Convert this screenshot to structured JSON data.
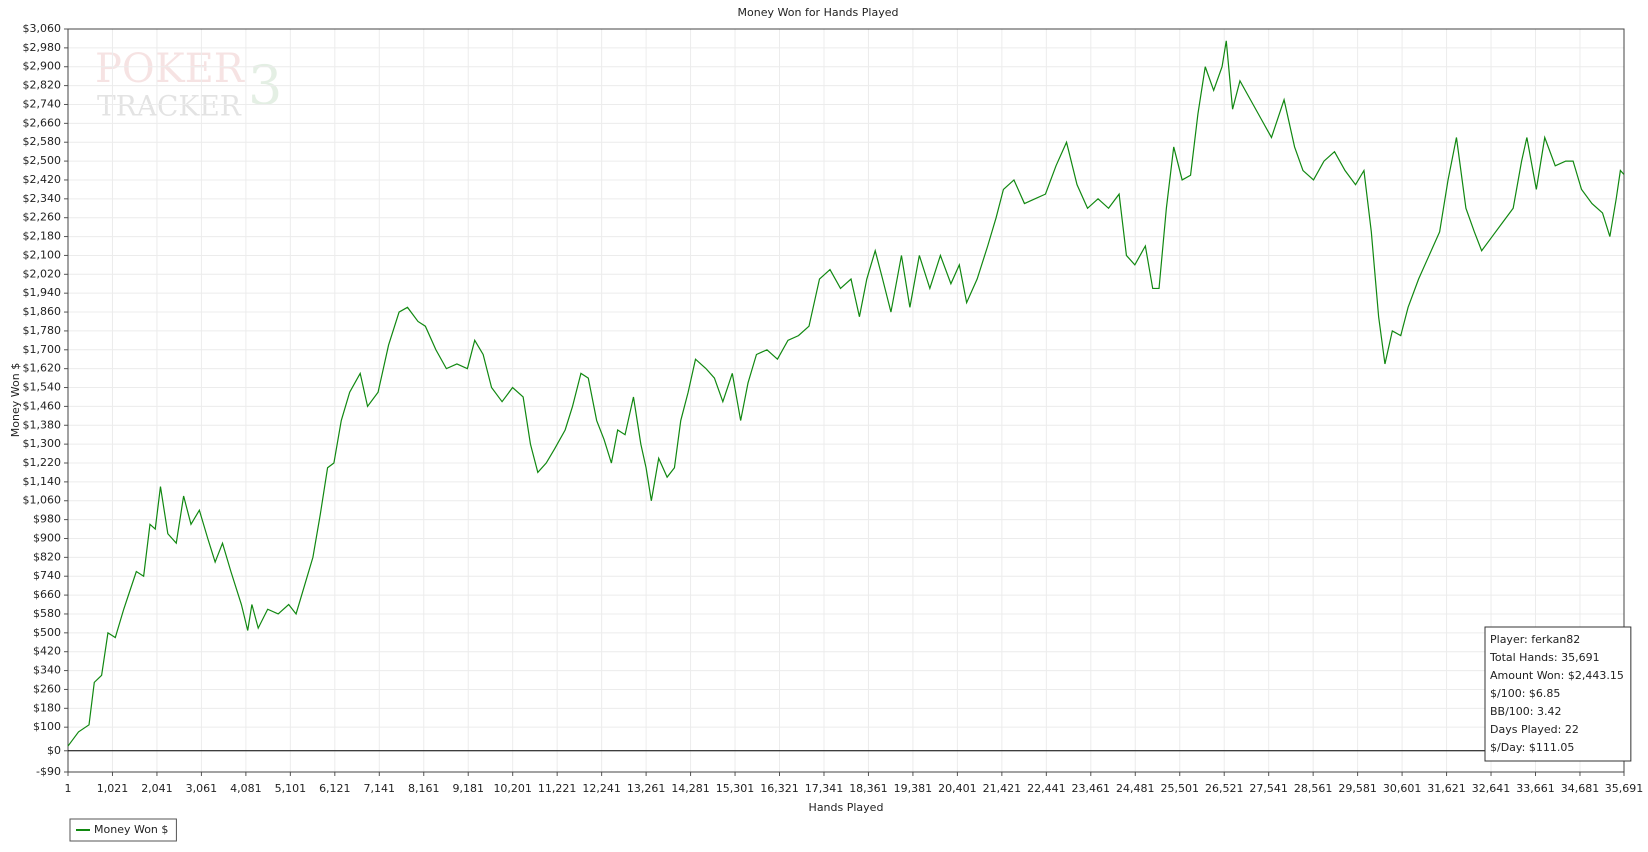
{
  "chart_data": {
    "type": "line",
    "title": "Money Won for Hands Played",
    "x_label": "Hands Played",
    "y_label": "Money Won $",
    "watermark": [
      "POKER",
      "TRACKER",
      "3"
    ],
    "annotations": [
      "Player: ferkan82",
      "Total Hands: 35,691",
      "Amount Won: $2,443.15",
      "$/100: $6.85",
      "BB/100: 3.42",
      "Days Played: 22",
      "$/Day: $111.05"
    ],
    "grid": true,
    "legend": "bottom-left",
    "x": [
      1,
      242,
      483,
      604,
      772,
      917,
      1086,
      1279,
      1568,
      1736,
      1881,
      2002,
      2122,
      2291,
      2484,
      2653,
      2822,
      3014,
      3207,
      3376,
      3545,
      3737,
      3978,
      4123,
      4219,
      4364,
      4581,
      4822,
      5063,
      5232,
      5425,
      5618,
      5786,
      5955,
      6100,
      6269,
      6462,
      6703,
      6872,
      7113,
      7354,
      7595,
      7788,
      8029,
      8198,
      8439,
      8680,
      8921,
      9162,
      9330,
      9523,
      9716,
      9957,
      10198,
      10440,
      10608,
      10777,
      10970,
      11163,
      11404,
      11573,
      11766,
      11935,
      12127,
      12296,
      12465,
      12609,
      12778,
      12971,
      13140,
      13260,
      13381,
      13550,
      13743,
      13911,
      14056,
      14225,
      14394,
      14635,
      14828,
      15021,
      15238,
      15430,
      15599,
      15792,
      16033,
      16274,
      16515,
      16756,
      16997,
      17238,
      17479,
      17720,
      17961,
      18154,
      18323,
      18516,
      18685,
      18877,
      19118,
      19311,
      19528,
      19769,
      20011,
      20252,
      20445,
      20613,
      20854,
      21096,
      21289,
      21457,
      21698,
      21939,
      22180,
      22421,
      22663,
      22904,
      23145,
      23386,
      23627,
      23868,
      24110,
      24278,
      24471,
      24712,
      24881,
      25026,
      25194,
      25363,
      25556,
      25749,
      25918,
      26086,
      26279,
      26472,
      26568,
      26713,
      26882,
      27123,
      27364,
      27605,
      27894,
      28135,
      28328,
      28569,
      28810,
      29051,
      29292,
      29533,
      29726,
      29895,
      30063,
      30208,
      30377,
      30570,
      30739,
      30980,
      31221,
      31462,
      31655,
      31848,
      32065,
      32258,
      32426,
      32667,
      32908,
      33149,
      33342,
      33463,
      33680,
      33873,
      34114,
      34355,
      34523,
      34716,
      34957,
      35198,
      35367,
      35512,
      35608,
      35691
    ],
    "series": [
      {
        "name": "Money Won $",
        "color": "#118811",
        "values": [
          20,
          80,
          110,
          290,
          320,
          500,
          480,
          600,
          760,
          740,
          960,
          940,
          1120,
          920,
          880,
          1080,
          960,
          1020,
          900,
          800,
          880,
          760,
          620,
          510,
          620,
          520,
          600,
          580,
          620,
          580,
          700,
          820,
          1000,
          1200,
          1220,
          1400,
          1520,
          1600,
          1460,
          1520,
          1720,
          1860,
          1880,
          1820,
          1800,
          1700,
          1620,
          1640,
          1620,
          1740,
          1680,
          1540,
          1480,
          1540,
          1500,
          1300,
          1180,
          1220,
          1280,
          1360,
          1460,
          1600,
          1580,
          1400,
          1320,
          1220,
          1360,
          1340,
          1500,
          1300,
          1200,
          1060,
          1240,
          1160,
          1200,
          1400,
          1520,
          1660,
          1620,
          1580,
          1480,
          1600,
          1400,
          1560,
          1680,
          1700,
          1660,
          1740,
          1760,
          1800,
          2000,
          2040,
          1960,
          2000,
          1840,
          2000,
          2120,
          2000,
          1860,
          2100,
          1880,
          2100,
          1960,
          2100,
          1980,
          2060,
          1900,
          2000,
          2140,
          2260,
          2380,
          2420,
          2320,
          2340,
          2360,
          2480,
          2580,
          2400,
          2300,
          2340,
          2300,
          2360,
          2100,
          2060,
          2140,
          1960,
          1960,
          2300,
          2560,
          2420,
          2440,
          2700,
          2900,
          2800,
          2900,
          3010,
          2720,
          2840,
          2760,
          2680,
          2600,
          2760,
          2560,
          2460,
          2420,
          2500,
          2540,
          2460,
          2400,
          2460,
          2200,
          1840,
          1640,
          1780,
          1760,
          1880,
          2000,
          2100,
          2200,
          2420,
          2600,
          2300,
          2200,
          2120,
          2180,
          2240,
          2300,
          2500,
          2600,
          2380,
          2600,
          2480,
          2500,
          2500,
          2380,
          2320,
          2280,
          2180,
          2340,
          2460,
          2443.15
        ]
      }
    ],
    "xlim": [
      1,
      35691
    ],
    "xticks": [
      {
        "value": 1,
        "label": "1"
      },
      {
        "value": 1021,
        "label": "1,021"
      },
      {
        "value": 2041,
        "label": "2,041"
      },
      {
        "value": 3061,
        "label": "3,061"
      },
      {
        "value": 4081,
        "label": "4,081"
      },
      {
        "value": 5101,
        "label": "5,101"
      },
      {
        "value": 6121,
        "label": "6,121"
      },
      {
        "value": 7141,
        "label": "7,141"
      },
      {
        "value": 8161,
        "label": "8,161"
      },
      {
        "value": 9181,
        "label": "9,181"
      },
      {
        "value": 10201,
        "label": "10,201"
      },
      {
        "value": 11221,
        "label": "11,221"
      },
      {
        "value": 12241,
        "label": "12,241"
      },
      {
        "value": 13261,
        "label": "13,261"
      },
      {
        "value": 14281,
        "label": "14,281"
      },
      {
        "value": 15301,
        "label": "15,301"
      },
      {
        "value": 16321,
        "label": "16,321"
      },
      {
        "value": 17341,
        "label": "17,341"
      },
      {
        "value": 18361,
        "label": "18,361"
      },
      {
        "value": 19381,
        "label": "19,381"
      },
      {
        "value": 20401,
        "label": "20,401"
      },
      {
        "value": 21421,
        "label": "21,421"
      },
      {
        "value": 22441,
        "label": "22,441"
      },
      {
        "value": 23461,
        "label": "23,461"
      },
      {
        "value": 24481,
        "label": "24,481"
      },
      {
        "value": 25501,
        "label": "25,501"
      },
      {
        "value": 26521,
        "label": "26,521"
      },
      {
        "value": 27541,
        "label": "27,541"
      },
      {
        "value": 28561,
        "label": "28,561"
      },
      {
        "value": 29581,
        "label": "29,581"
      },
      {
        "value": 30601,
        "label": "30,601"
      },
      {
        "value": 31621,
        "label": "31,621"
      },
      {
        "value": 32641,
        "label": "32,641"
      },
      {
        "value": 33661,
        "label": "33,661"
      },
      {
        "value": 34681,
        "label": "34,681"
      },
      {
        "value": 35691,
        "label": "35,691"
      }
    ],
    "ylim": [
      -90,
      3060
    ],
    "yticks": [
      {
        "value": -90,
        "label": "-$90"
      },
      {
        "value": 0,
        "label": "$0"
      },
      {
        "value": 100,
        "label": "$100"
      },
      {
        "value": 180,
        "label": "$180"
      },
      {
        "value": 260,
        "label": "$260"
      },
      {
        "value": 340,
        "label": "$340"
      },
      {
        "value": 420,
        "label": "$420"
      },
      {
        "value": 500,
        "label": "$500"
      },
      {
        "value": 580,
        "label": "$580"
      },
      {
        "value": 660,
        "label": "$660"
      },
      {
        "value": 740,
        "label": "$740"
      },
      {
        "value": 820,
        "label": "$820"
      },
      {
        "value": 900,
        "label": "$900"
      },
      {
        "value": 980,
        "label": "$980"
      },
      {
        "value": 1060,
        "label": "$1,060"
      },
      {
        "value": 1140,
        "label": "$1,140"
      },
      {
        "value": 1220,
        "label": "$1,220"
      },
      {
        "value": 1300,
        "label": "$1,300"
      },
      {
        "value": 1380,
        "label": "$1,380"
      },
      {
        "value": 1460,
        "label": "$1,460"
      },
      {
        "value": 1540,
        "label": "$1,540"
      },
      {
        "value": 1620,
        "label": "$1,620"
      },
      {
        "value": 1700,
        "label": "$1,700"
      },
      {
        "value": 1780,
        "label": "$1,780"
      },
      {
        "value": 1860,
        "label": "$1,860"
      },
      {
        "value": 1940,
        "label": "$1,940"
      },
      {
        "value": 2020,
        "label": "$2,020"
      },
      {
        "value": 2100,
        "label": "$2,100"
      },
      {
        "value": 2180,
        "label": "$2,180"
      },
      {
        "value": 2260,
        "label": "$2,260"
      },
      {
        "value": 2340,
        "label": "$2,340"
      },
      {
        "value": 2420,
        "label": "$2,420"
      },
      {
        "value": 2500,
        "label": "$2,500"
      },
      {
        "value": 2580,
        "label": "$2,580"
      },
      {
        "value": 2660,
        "label": "$2,660"
      },
      {
        "value": 2740,
        "label": "$2,740"
      },
      {
        "value": 2820,
        "label": "$2,820"
      },
      {
        "value": 2900,
        "label": "$2,900"
      },
      {
        "value": 2980,
        "label": "$2,980"
      },
      {
        "value": 3060,
        "label": "$3,060"
      }
    ]
  }
}
